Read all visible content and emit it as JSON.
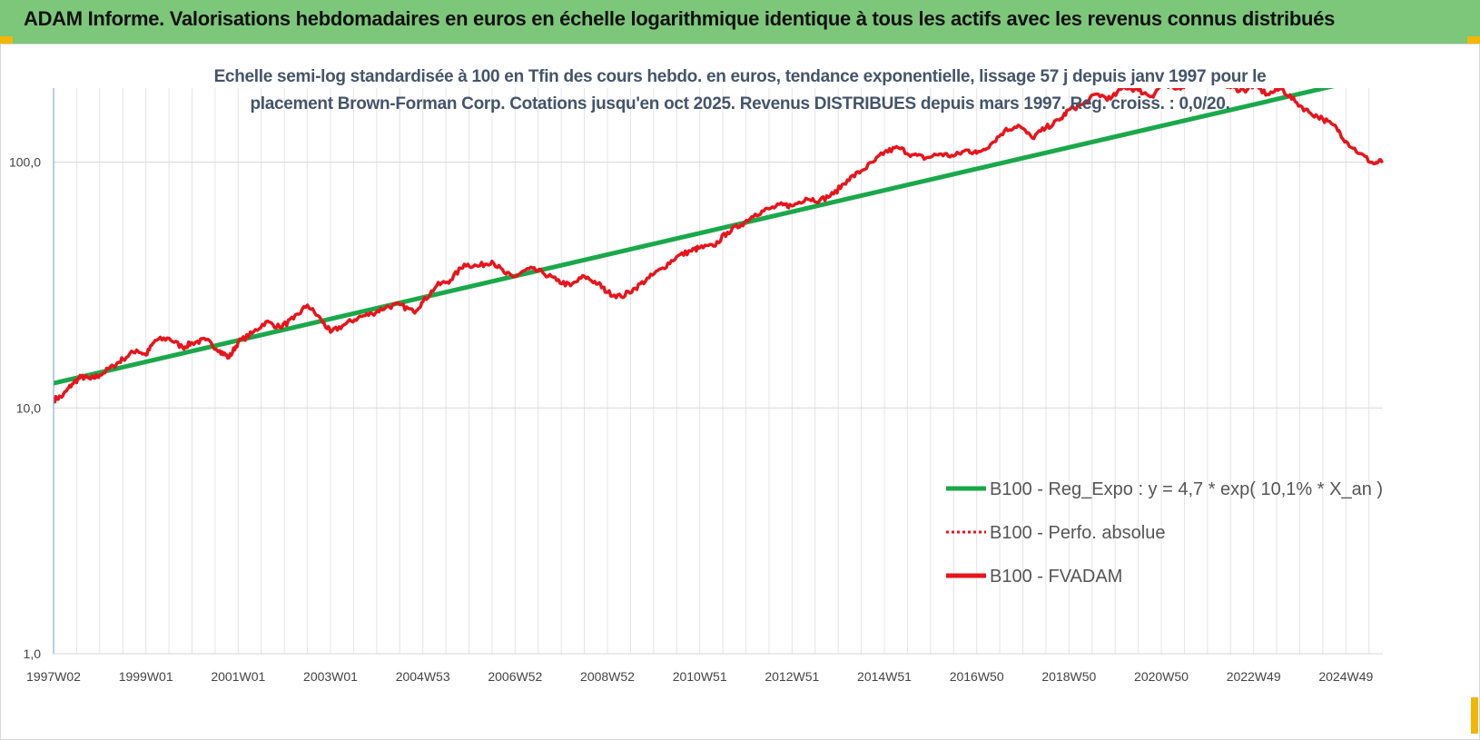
{
  "header": {
    "title": "ADAM Informe. Valorisations hebdomadaires en euros en échelle logarithmique identique à tous les actifs avec les revenus connus distribués",
    "banner_color": "#7dc77a",
    "accent_color": "#f2b705"
  },
  "chart_data": {
    "type": "line",
    "title_lines": [
      "Echelle semi-log standardisée à 100 en Tfin des cours hebdo. en euros, tendance exponentielle, lissage 57 j depuis janv 1997 pour le",
      "placement Brown-Forman Corp. Cotations jusqu'en oct 2025. Revenus DISTRIBUES depuis mars 1997. Reg. croiss. : 0,0/20."
    ],
    "y_scale": "log",
    "ylim": [
      1,
      200
    ],
    "y_ticks": [
      {
        "value": 1,
        "label": "1,0"
      },
      {
        "value": 10,
        "label": "10,0"
      },
      {
        "value": 100,
        "label": "100,0"
      }
    ],
    "xlim": [
      1997.0,
      2025.8
    ],
    "x_ticks": [
      {
        "value": 1997.0,
        "label": "1997W02"
      },
      {
        "value": 1999.0,
        "label": "1999W01"
      },
      {
        "value": 2001.0,
        "label": "2001W01"
      },
      {
        "value": 2003.0,
        "label": "2003W01"
      },
      {
        "value": 2005.0,
        "label": "2004W53"
      },
      {
        "value": 2007.0,
        "label": "2006W52"
      },
      {
        "value": 2009.0,
        "label": "2008W52"
      },
      {
        "value": 2011.0,
        "label": "2010W51"
      },
      {
        "value": 2013.0,
        "label": "2012W51"
      },
      {
        "value": 2015.0,
        "label": "2014W51"
      },
      {
        "value": 2017.0,
        "label": "2016W50"
      },
      {
        "value": 2019.0,
        "label": "2018W50"
      },
      {
        "value": 2021.0,
        "label": "2020W50"
      },
      {
        "value": 2023.0,
        "label": "2022W49"
      },
      {
        "value": 2025.0,
        "label": "2024W49"
      }
    ],
    "grid": true,
    "legend_position": "bottom-right",
    "series": [
      {
        "name": "B100 - Reg_Expo : y = 4,7 * exp( 10,1% *  X_an )",
        "color": "#1aa84a",
        "style": "solid",
        "x": [
          1997.0,
          2025.8
        ],
        "y": [
          12.6,
          227
        ]
      },
      {
        "name": "B100 - Perfo. absolue",
        "color": "#e8141b",
        "style": "dotted",
        "x": [],
        "y": []
      },
      {
        "name": "B100 - FVADAM",
        "color": "#e8141b",
        "style": "solid",
        "x": [
          1997.0,
          1997.2,
          1997.4,
          1997.6,
          1997.8,
          1998.0,
          1998.3,
          1998.5,
          1998.8,
          1999.0,
          1999.2,
          1999.5,
          1999.8,
          2000.0,
          2000.3,
          2000.6,
          2000.8,
          2001.0,
          2001.3,
          2001.6,
          2001.9,
          2002.2,
          2002.5,
          2002.8,
          2003.0,
          2003.3,
          2003.6,
          2003.9,
          2004.2,
          2004.5,
          2004.8,
          2005.0,
          2005.3,
          2005.6,
          2005.9,
          2006.2,
          2006.5,
          2006.8,
          2007.0,
          2007.3,
          2007.6,
          2007.9,
          2008.2,
          2008.5,
          2008.8,
          2009.0,
          2009.3,
          2009.6,
          2009.9,
          2010.2,
          2010.5,
          2010.8,
          2011.0,
          2011.3,
          2011.6,
          2011.9,
          2012.2,
          2012.5,
          2012.8,
          2013.0,
          2013.3,
          2013.6,
          2013.9,
          2014.2,
          2014.5,
          2014.8,
          2015.0,
          2015.3,
          2015.6,
          2015.9,
          2016.2,
          2016.5,
          2016.8,
          2017.0,
          2017.3,
          2017.6,
          2017.9,
          2018.2,
          2018.5,
          2018.8,
          2019.0,
          2019.3,
          2019.6,
          2019.9,
          2020.2,
          2020.5,
          2020.8,
          2021.0,
          2021.3,
          2021.6,
          2021.9,
          2022.2,
          2022.5,
          2022.8,
          2023.0,
          2023.3,
          2023.6,
          2023.9,
          2024.2,
          2024.5,
          2024.8,
          2025.0,
          2025.3,
          2025.6,
          2025.8
        ],
        "y": [
          10.8,
          11.2,
          12.5,
          13.4,
          13.1,
          13.6,
          14.8,
          15.8,
          17.2,
          16.4,
          18.8,
          19.2,
          17.6,
          18.4,
          18.9,
          17.1,
          16.0,
          18.5,
          20.1,
          22.4,
          21.3,
          23.0,
          26.2,
          22.8,
          20.3,
          21.8,
          23.3,
          24.2,
          25.7,
          26.3,
          24.6,
          27.0,
          31.4,
          33.1,
          38.4,
          37.7,
          39.5,
          35.0,
          34.2,
          36.8,
          35.5,
          33.0,
          31.4,
          34.3,
          32.0,
          29.5,
          28.3,
          30.7,
          33.8,
          37.1,
          41.2,
          43.5,
          44.8,
          45.5,
          51.8,
          55.7,
          61.4,
          64.5,
          67.0,
          66.3,
          71.3,
          69.8,
          74.2,
          84.6,
          92.0,
          101.4,
          109.6,
          114.5,
          107.1,
          103.8,
          108.0,
          105.7,
          112.0,
          108.6,
          118.0,
          133.9,
          141.2,
          125.5,
          137.8,
          148.4,
          163.4,
          171.6,
          189.3,
          180.5,
          202.5,
          196.0,
          185.2,
          205.6,
          198.1,
          210.0,
          218.7,
          212.4,
          200.8,
          195.5,
          205.0,
          188.5,
          199.0,
          176.2,
          159.5,
          150.0,
          137.5,
          121.4,
          108.3,
          98.5,
          101.2
        ]
      }
    ]
  }
}
